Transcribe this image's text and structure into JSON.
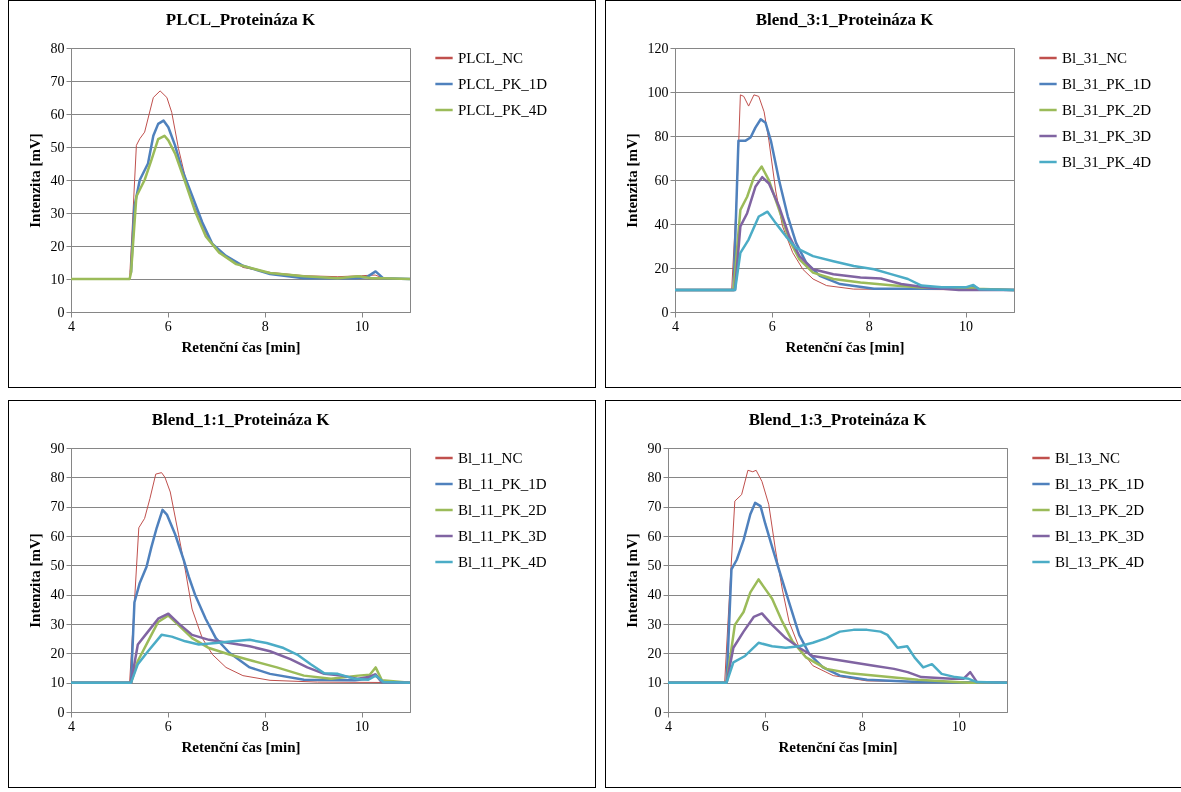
{
  "chart_data": [
    {
      "type": "line",
      "title": "PLCL_Proteináza K",
      "xlabel": "Retenční čas [min]",
      "ylabel": "Intenzita  [mV]",
      "xlim": [
        4,
        11
      ],
      "xticks": [
        4,
        6,
        8,
        10
      ],
      "ylim": [
        0,
        80
      ],
      "yticks": [
        0,
        10,
        20,
        30,
        40,
        50,
        60,
        70,
        80
      ],
      "grid": "y",
      "legend": "right",
      "series": [
        {
          "name": "PLCL_NC",
          "color": "#c0504d",
          "x": [
            4,
            5.21,
            5.28,
            5.35,
            5.42,
            5.52,
            5.7,
            5.84,
            5.98,
            6.08,
            6.22,
            6.43,
            6.64,
            6.85,
            7.13,
            7.55,
            8.11,
            8.81,
            9.51,
            10.0,
            10.28,
            10.5,
            11
          ],
          "values": [
            10,
            10,
            30,
            50.5,
            52.5,
            54.5,
            65,
            67,
            65,
            60.5,
            49.5,
            36.5,
            28.5,
            22,
            17.5,
            13.5,
            12,
            11,
            10.7,
            11,
            11.2,
            10,
            10
          ]
        },
        {
          "name": "PLCL_PK_1D",
          "color": "#4f81bd",
          "x": [
            5.24,
            5.31,
            5.42,
            5.59,
            5.7,
            5.8,
            5.91,
            6.01,
            6.15,
            6.29,
            6.5,
            6.71,
            6.92,
            7.2,
            7.55,
            8.11,
            8.81,
            9.86,
            10.1,
            10.29,
            10.45,
            11
          ],
          "values": [
            12,
            32,
            40,
            45,
            53.4,
            57,
            58,
            56,
            50.4,
            43.3,
            35.3,
            27.2,
            20.6,
            17,
            14,
            11.5,
            10.2,
            10.2,
            10.5,
            12.3,
            10.2,
            10
          ]
        },
        {
          "name": "PLCL_PK_4D",
          "color": "#9bbb59",
          "x": [
            4,
            5.21,
            5.24,
            5.35,
            5.52,
            5.66,
            5.8,
            5.93,
            6.01,
            6.15,
            6.36,
            6.57,
            6.78,
            7.06,
            7.41,
            8.11,
            8.81,
            9.51,
            9.93,
            10.21,
            10.42,
            11
          ],
          "values": [
            10,
            10,
            12,
            35,
            40,
            46,
            52.4,
            53.4,
            52,
            48,
            39.3,
            30.2,
            23,
            18,
            14.5,
            11.8,
            10.8,
            10.2,
            10.8,
            10.2,
            10.2,
            10
          ]
        }
      ]
    },
    {
      "type": "line",
      "title": "Blend_3:1_Proteináza K",
      "xlabel": "Retenční čas [min]",
      "ylabel": "Intenzita  [mV]",
      "xlim": [
        4,
        11
      ],
      "xticks": [
        4,
        6,
        8,
        10
      ],
      "ylim": [
        0,
        120
      ],
      "yticks": [
        0,
        20,
        40,
        60,
        80,
        100,
        120
      ],
      "grid": "y",
      "legend": "right",
      "series": [
        {
          "name": "Bl_31_NC",
          "color": "#c0504d",
          "x": [
            4,
            5.17,
            5.28,
            5.35,
            5.42,
            5.52,
            5.63,
            5.73,
            5.84,
            5.94,
            6.08,
            6.22,
            6.43,
            6.64,
            6.85,
            7.13,
            7.69,
            11
          ],
          "values": [
            10,
            10,
            55,
            98.7,
            98,
            93.6,
            98.7,
            98,
            91,
            77.8,
            55,
            39,
            27,
            19.4,
            15,
            12,
            10.4,
            10
          ]
        },
        {
          "name": "Bl_31_PK_1D",
          "color": "#4f81bd",
          "x": [
            4,
            5.21,
            5.31,
            5.45,
            5.56,
            5.66,
            5.77,
            5.87,
            5.98,
            6.15,
            6.33,
            6.5,
            6.71,
            6.99,
            7.41,
            8.11,
            10.07,
            10.17,
            10.28,
            11
          ],
          "values": [
            10,
            10,
            77.8,
            77.8,
            79.3,
            83.8,
            87.6,
            86,
            77.8,
            59.8,
            43.4,
            31.4,
            22.4,
            16.4,
            12.7,
            10.6,
            10.6,
            11.8,
            10.3,
            10
          ]
        },
        {
          "name": "Bl_31_PK_2D",
          "color": "#9bbb59",
          "x": [
            4,
            5.21,
            5.35,
            5.49,
            5.63,
            5.79,
            5.94,
            6.15,
            6.36,
            6.57,
            6.85,
            7.27,
            7.83,
            8.46,
            9.16,
            10.07,
            10.21,
            11
          ],
          "values": [
            10,
            10,
            46.4,
            52.4,
            61.3,
            66.1,
            59.8,
            46.4,
            32.9,
            23.9,
            17.9,
            15,
            13.4,
            12.2,
            11,
            11,
            10.6,
            10
          ]
        },
        {
          "name": "Bl_31_PK_3D",
          "color": "#8064a2",
          "x": [
            4,
            5.24,
            5.35,
            5.49,
            5.66,
            5.8,
            5.94,
            6.15,
            6.36,
            6.57,
            6.85,
            7.27,
            7.83,
            8.25,
            8.67,
            9.16,
            9.86,
            11
          ],
          "values": [
            10,
            10,
            38.9,
            44.9,
            56.9,
            61.3,
            58.4,
            47.9,
            34.4,
            25.4,
            19.4,
            17.2,
            15.7,
            15.2,
            12.7,
            11.2,
            10,
            10
          ]
        },
        {
          "name": "Bl_31_PK_4D",
          "color": "#4bacc6",
          "x": [
            4,
            5.24,
            5.35,
            5.52,
            5.73,
            5.91,
            6.08,
            6.29,
            6.5,
            6.85,
            7.27,
            7.69,
            8.11,
            8.46,
            8.81,
            9.09,
            9.51,
            10.0,
            10.16,
            10.28,
            11
          ],
          "values": [
            10,
            10,
            26.9,
            32.9,
            43.4,
            45.6,
            40.4,
            34.4,
            29.1,
            25.4,
            23.1,
            20.9,
            19.4,
            17.2,
            15,
            12,
            11.2,
            11.2,
            12.3,
            10.3,
            10
          ]
        }
      ]
    },
    {
      "type": "line",
      "title": "Blend_1:1_Proteináza K",
      "xlabel": "Retenční čas [min]",
      "ylabel": "Intenzita  [mV]",
      "xlim": [
        4,
        11
      ],
      "xticks": [
        4,
        6,
        8,
        10
      ],
      "ylim": [
        0,
        90
      ],
      "yticks": [
        0,
        10,
        20,
        30,
        40,
        50,
        60,
        70,
        80,
        90
      ],
      "grid": "y",
      "legend": "right",
      "series": [
        {
          "name": "Bl_11_NC",
          "color": "#c0504d",
          "x": [
            4,
            5.21,
            5.31,
            5.4,
            5.52,
            5.63,
            5.75,
            5.87,
            5.94,
            6.05,
            6.22,
            6.36,
            6.5,
            6.71,
            6.92,
            7.2,
            7.55,
            8.11,
            9.09,
            11
          ],
          "values": [
            10,
            10,
            37.4,
            62.8,
            66,
            72.8,
            81.1,
            81.6,
            80,
            75,
            60.6,
            48.4,
            35.1,
            25.2,
            19.6,
            15.2,
            12.4,
            10.8,
            10.2,
            10
          ]
        },
        {
          "name": "Bl_11_PK_1D",
          "color": "#4f81bd",
          "x": [
            4,
            5.24,
            5.31,
            5.42,
            5.56,
            5.66,
            5.77,
            5.89,
            5.98,
            6.15,
            6.33,
            6.43,
            6.57,
            6.78,
            6.99,
            7.27,
            7.69,
            8.11,
            8.81,
            9.86,
            10.14,
            10.29,
            10.42,
            11
          ],
          "values": [
            10,
            10,
            37.4,
            44,
            49.5,
            56.2,
            62.8,
            68.9,
            67.3,
            60.6,
            51.7,
            46.2,
            39.6,
            31.8,
            25.2,
            20.2,
            15.2,
            13,
            11,
            10.8,
            11.3,
            12.8,
            10.2,
            10
          ]
        },
        {
          "name": "Bl_11_PK_2D",
          "color": "#9bbb59",
          "x": [
            4,
            5.24,
            5.38,
            5.59,
            5.8,
            6.01,
            6.22,
            6.5,
            6.85,
            7.27,
            7.76,
            8.25,
            8.81,
            9.37,
            9.93,
            10.17,
            10.29,
            10.42,
            11
          ],
          "values": [
            10,
            10,
            17.4,
            24.1,
            30.7,
            32.9,
            29.6,
            25.2,
            21.8,
            19.6,
            17.4,
            15.2,
            12.4,
            11.3,
            12.4,
            12.7,
            15.2,
            10.8,
            10
          ]
        },
        {
          "name": "Bl_11_PK_3D",
          "color": "#8064a2",
          "x": [
            4,
            5.24,
            5.38,
            5.59,
            5.8,
            6.01,
            6.22,
            6.5,
            6.85,
            7.27,
            7.69,
            8.11,
            8.53,
            8.88,
            9.23,
            9.58,
            9.93,
            10.14,
            10.28,
            10.42,
            11
          ],
          "values": [
            10,
            10,
            23,
            27.4,
            31.8,
            33.5,
            30.2,
            26.3,
            24.6,
            23.5,
            22.4,
            20.7,
            18,
            15.2,
            13,
            12.4,
            11.3,
            11.9,
            12.8,
            10.2,
            10
          ]
        },
        {
          "name": "Bl_11_PK_4D",
          "color": "#4bacc6",
          "x": [
            4,
            5.24,
            5.38,
            5.59,
            5.87,
            6.08,
            6.36,
            6.64,
            6.99,
            7.34,
            7.69,
            8.04,
            8.39,
            8.67,
            8.95,
            9.23,
            9.51,
            9.86,
            10.14,
            10.29,
            10.45,
            11
          ],
          "values": [
            10,
            10,
            16.3,
            20.7,
            26.3,
            25.7,
            24.1,
            23,
            23.5,
            24.1,
            24.6,
            23.5,
            21.8,
            19.6,
            16.3,
            13.2,
            13,
            11.3,
            11,
            12.4,
            10.2,
            10
          ]
        }
      ]
    },
    {
      "type": "line",
      "title": "Blend_1:3_Proteináza K",
      "xlabel": "Retenční čas [min]",
      "ylabel": "Intenzita  [mV]",
      "xlim": [
        4,
        11
      ],
      "xticks": [
        4,
        6,
        8,
        10
      ],
      "ylim": [
        0,
        90
      ],
      "yticks": [
        0,
        10,
        20,
        30,
        40,
        50,
        60,
        70,
        80,
        90
      ],
      "grid": "y",
      "legend": "right",
      "series": [
        {
          "name": "Bl_13_NC",
          "color": "#c0504d",
          "x": [
            4,
            5.17,
            5.28,
            5.38,
            5.52,
            5.65,
            5.75,
            5.82,
            5.94,
            6.08,
            6.22,
            6.36,
            6.5,
            6.71,
            6.99,
            7.41,
            8.11,
            11
          ],
          "values": [
            10,
            10,
            43,
            71.9,
            74.1,
            82.4,
            81.9,
            82.4,
            78.6,
            70.8,
            55.2,
            41.9,
            30.8,
            21.9,
            15.8,
            12.4,
            10.6,
            10
          ]
        },
        {
          "name": "Bl_13_PK_1D",
          "color": "#4f81bd",
          "x": [
            4,
            5.21,
            5.31,
            5.42,
            5.56,
            5.7,
            5.8,
            5.91,
            6.01,
            6.15,
            6.29,
            6.5,
            6.71,
            6.92,
            7.2,
            7.55,
            8.11,
            9.16,
            11
          ],
          "values": [
            10,
            10,
            48.6,
            51.9,
            58.6,
            67.4,
            71.3,
            70.2,
            64.1,
            56.3,
            48.6,
            37.4,
            26.3,
            19.7,
            15.2,
            12.4,
            11,
            10.2,
            10
          ]
        },
        {
          "name": "Bl_13_PK_2D",
          "color": "#9bbb59",
          "x": [
            4,
            5.21,
            5.38,
            5.56,
            5.7,
            5.87,
            6.01,
            6.15,
            6.36,
            6.57,
            6.85,
            7.27,
            7.76,
            8.46,
            9.16,
            10.21,
            11
          ],
          "values": [
            10,
            10,
            29.7,
            34.1,
            40.8,
            45.2,
            41.9,
            38.6,
            30.8,
            24.1,
            18.6,
            14.7,
            13.2,
            12.1,
            11,
            10,
            10
          ]
        },
        {
          "name": "Bl_13_PK_3D",
          "color": "#8064a2",
          "x": [
            4,
            5.21,
            5.35,
            5.56,
            5.77,
            5.94,
            6.15,
            6.43,
            6.71,
            6.99,
            7.41,
            7.83,
            8.25,
            8.67,
            8.95,
            9.23,
            9.86,
            10.1,
            10.24,
            10.38,
            11
          ],
          "values": [
            10,
            10,
            21.9,
            27.4,
            32.4,
            33.6,
            29.7,
            25.2,
            21.9,
            19.1,
            18,
            16.9,
            15.8,
            14.7,
            13.6,
            11.9,
            11.3,
            11.3,
            13.6,
            10.2,
            10
          ]
        },
        {
          "name": "Bl_13_PK_4D",
          "color": "#4bacc6",
          "x": [
            4,
            5.21,
            5.35,
            5.59,
            5.87,
            6.15,
            6.43,
            6.71,
            6.99,
            7.27,
            7.55,
            7.83,
            8.11,
            8.39,
            8.53,
            8.74,
            8.94,
            9.09,
            9.27,
            9.45,
            9.65,
            9.93,
            10.21,
            10.38,
            11
          ],
          "values": [
            10,
            10,
            16.9,
            19.1,
            23.6,
            22.4,
            21.9,
            22.4,
            23.6,
            25.2,
            27.4,
            28,
            28,
            27.4,
            26.3,
            21.9,
            22.4,
            18.6,
            15.2,
            16.3,
            13,
            11.9,
            11.3,
            10.2,
            10
          ]
        }
      ]
    }
  ]
}
